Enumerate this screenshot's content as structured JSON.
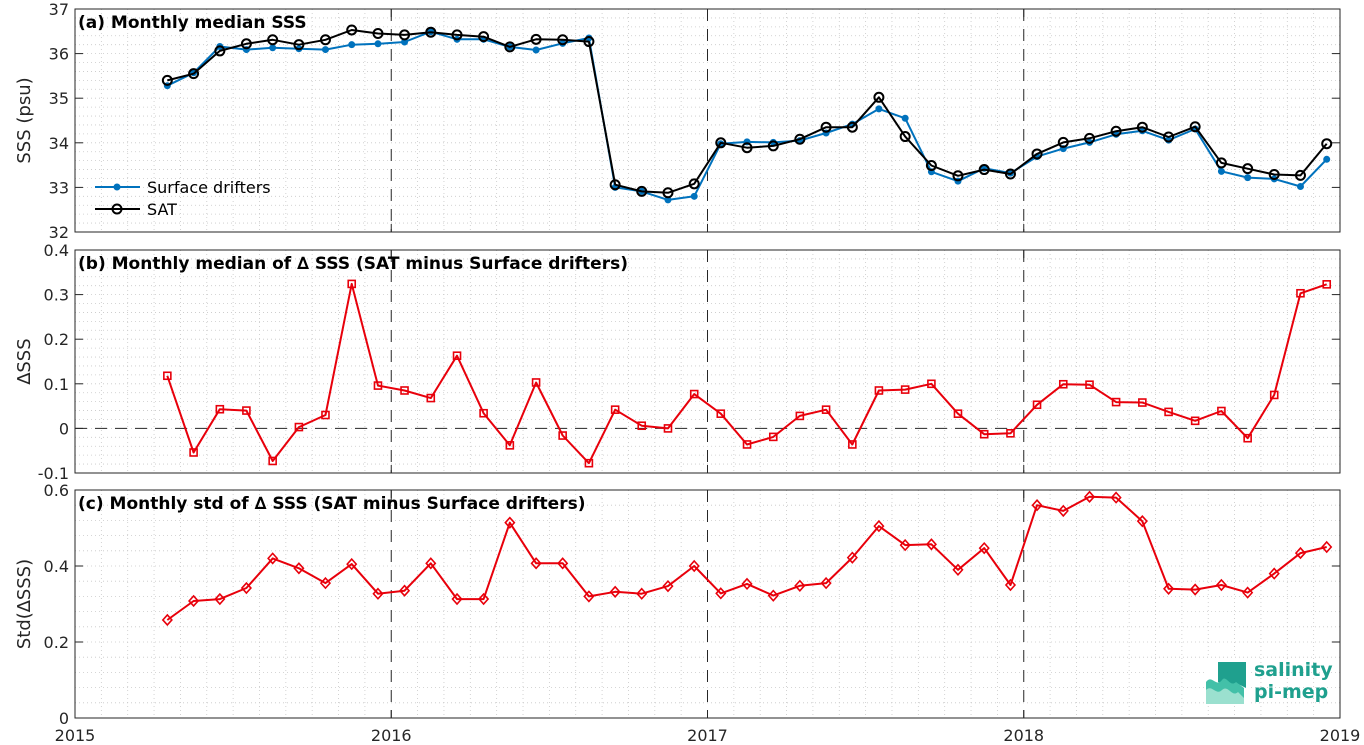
{
  "colors": {
    "drifters": "#0072bd",
    "sat": "#000000",
    "delta": "#e8000b",
    "logo": "#1fa08e"
  },
  "logo": {
    "line1": "salinity",
    "line2": "pi-mep"
  },
  "x_ticks": [
    "2015",
    "2016",
    "2017",
    "2018",
    "2019"
  ],
  "chart_data": [
    {
      "type": "line",
      "title": "(a) Monthly median SSS",
      "ylabel": "SSS (psu)",
      "xlim": [
        2015,
        2019
      ],
      "ylim": [
        32,
        37
      ],
      "y_ticks": [
        "32",
        "33",
        "34",
        "35",
        "36",
        "37"
      ],
      "grid": true,
      "legend": "bottom-left",
      "x": [
        2015.292,
        2015.375,
        2015.458,
        2015.542,
        2015.625,
        2015.708,
        2015.792,
        2015.875,
        2015.958,
        2016.042,
        2016.125,
        2016.208,
        2016.292,
        2016.375,
        2016.458,
        2016.542,
        2016.625,
        2016.708,
        2016.792,
        2016.875,
        2016.958,
        2017.042,
        2017.125,
        2017.208,
        2017.292,
        2017.375,
        2017.458,
        2017.542,
        2017.625,
        2017.708,
        2017.792,
        2017.875,
        2017.958,
        2018.042,
        2018.125,
        2018.208,
        2018.292,
        2018.375,
        2018.458,
        2018.542,
        2018.625,
        2018.708,
        2018.792,
        2018.875,
        2018.958
      ],
      "series": [
        {
          "name": "Surface drifters",
          "marker": "dot",
          "values": [
            35.28,
            35.57,
            36.16,
            36.09,
            36.13,
            36.11,
            36.09,
            36.2,
            36.22,
            36.26,
            36.49,
            36.32,
            36.32,
            36.15,
            36.08,
            36.23,
            36.35,
            33.0,
            32.91,
            32.72,
            32.8,
            33.98,
            34.02,
            34.01,
            34.05,
            34.22,
            34.42,
            34.76,
            34.55,
            33.35,
            33.14,
            33.43,
            33.32,
            33.69,
            33.87,
            34.01,
            34.19,
            34.27,
            34.06,
            34.31,
            33.36,
            33.22,
            33.19,
            33.02,
            33.63
          ]
        },
        {
          "name": "SAT",
          "marker": "circle",
          "values": [
            35.4,
            35.55,
            36.06,
            36.22,
            36.31,
            36.2,
            36.31,
            36.53,
            36.45,
            36.42,
            36.48,
            36.42,
            36.38,
            36.15,
            36.32,
            36.31,
            36.27,
            33.06,
            32.91,
            32.88,
            33.08,
            34.0,
            33.89,
            33.93,
            34.08,
            34.35,
            34.35,
            35.02,
            34.14,
            33.49,
            33.26,
            33.4,
            33.3,
            33.75,
            34.01,
            34.1,
            34.26,
            34.35,
            34.13,
            34.36,
            33.55,
            33.42,
            33.29,
            33.27,
            33.98
          ]
        }
      ]
    },
    {
      "type": "line",
      "title": "(b) Monthly median of ∆ SSS (SAT minus Surface drifters)",
      "ylabel": "∆SSS",
      "xlim": [
        2015,
        2019
      ],
      "ylim": [
        -0.1,
        0.4
      ],
      "y_ticks": [
        "-0.1",
        "0",
        "0.1",
        "0.2",
        "0.3",
        "0.4"
      ],
      "grid": true,
      "zero_line": true,
      "x": [
        2015.292,
        2015.375,
        2015.458,
        2015.542,
        2015.625,
        2015.708,
        2015.792,
        2015.875,
        2015.958,
        2016.042,
        2016.125,
        2016.208,
        2016.292,
        2016.375,
        2016.458,
        2016.542,
        2016.625,
        2016.708,
        2016.792,
        2016.875,
        2016.958,
        2017.042,
        2017.125,
        2017.208,
        2017.292,
        2017.375,
        2017.458,
        2017.542,
        2017.625,
        2017.708,
        2017.792,
        2017.875,
        2017.958,
        2018.042,
        2018.125,
        2018.208,
        2018.292,
        2018.375,
        2018.458,
        2018.542,
        2018.625,
        2018.708,
        2018.792,
        2018.875,
        2018.958
      ],
      "series": [
        {
          "name": "",
          "marker": "square",
          "values": [
            0.118,
            -0.054,
            0.043,
            0.04,
            -0.073,
            0.003,
            0.03,
            0.324,
            0.096,
            0.085,
            0.068,
            0.163,
            0.034,
            -0.038,
            0.103,
            -0.016,
            -0.078,
            0.042,
            0.006,
            0.0,
            0.077,
            0.033,
            -0.036,
            -0.019,
            0.028,
            0.042,
            -0.036,
            0.085,
            0.087,
            0.1,
            0.033,
            -0.013,
            -0.011,
            0.053,
            0.099,
            0.098,
            0.059,
            0.058,
            0.037,
            0.017,
            0.039,
            -0.022,
            0.075,
            0.303,
            0.323
          ]
        }
      ]
    },
    {
      "type": "line",
      "title": "(c) Monthly std of ∆ SSS (SAT minus Surface drifters)",
      "ylabel": "Std(∆SSS)",
      "xlim": [
        2015,
        2019
      ],
      "ylim": [
        0,
        0.6
      ],
      "y_ticks": [
        "0",
        "0.2",
        "0.4",
        "0.6"
      ],
      "grid": true,
      "x": [
        2015.292,
        2015.375,
        2015.458,
        2015.542,
        2015.625,
        2015.708,
        2015.792,
        2015.875,
        2015.958,
        2016.042,
        2016.125,
        2016.208,
        2016.292,
        2016.375,
        2016.458,
        2016.542,
        2016.625,
        2016.708,
        2016.792,
        2016.875,
        2016.958,
        2017.042,
        2017.125,
        2017.208,
        2017.292,
        2017.375,
        2017.458,
        2017.542,
        2017.625,
        2017.708,
        2017.792,
        2017.875,
        2017.958,
        2018.042,
        2018.125,
        2018.208,
        2018.292,
        2018.375,
        2018.458,
        2018.542,
        2018.625,
        2018.708,
        2018.792,
        2018.875,
        2018.958
      ],
      "series": [
        {
          "name": "",
          "marker": "diamond",
          "values": [
            0.258,
            0.308,
            0.313,
            0.342,
            0.42,
            0.394,
            0.355,
            0.405,
            0.327,
            0.335,
            0.407,
            0.313,
            0.313,
            0.514,
            0.407,
            0.407,
            0.32,
            0.332,
            0.327,
            0.347,
            0.4,
            0.328,
            0.353,
            0.322,
            0.348,
            0.355,
            0.422,
            0.505,
            0.455,
            0.457,
            0.39,
            0.447,
            0.35,
            0.56,
            0.545,
            0.582,
            0.58,
            0.518,
            0.34,
            0.338,
            0.35,
            0.33,
            0.38,
            0.434,
            0.45
          ]
        }
      ]
    }
  ]
}
